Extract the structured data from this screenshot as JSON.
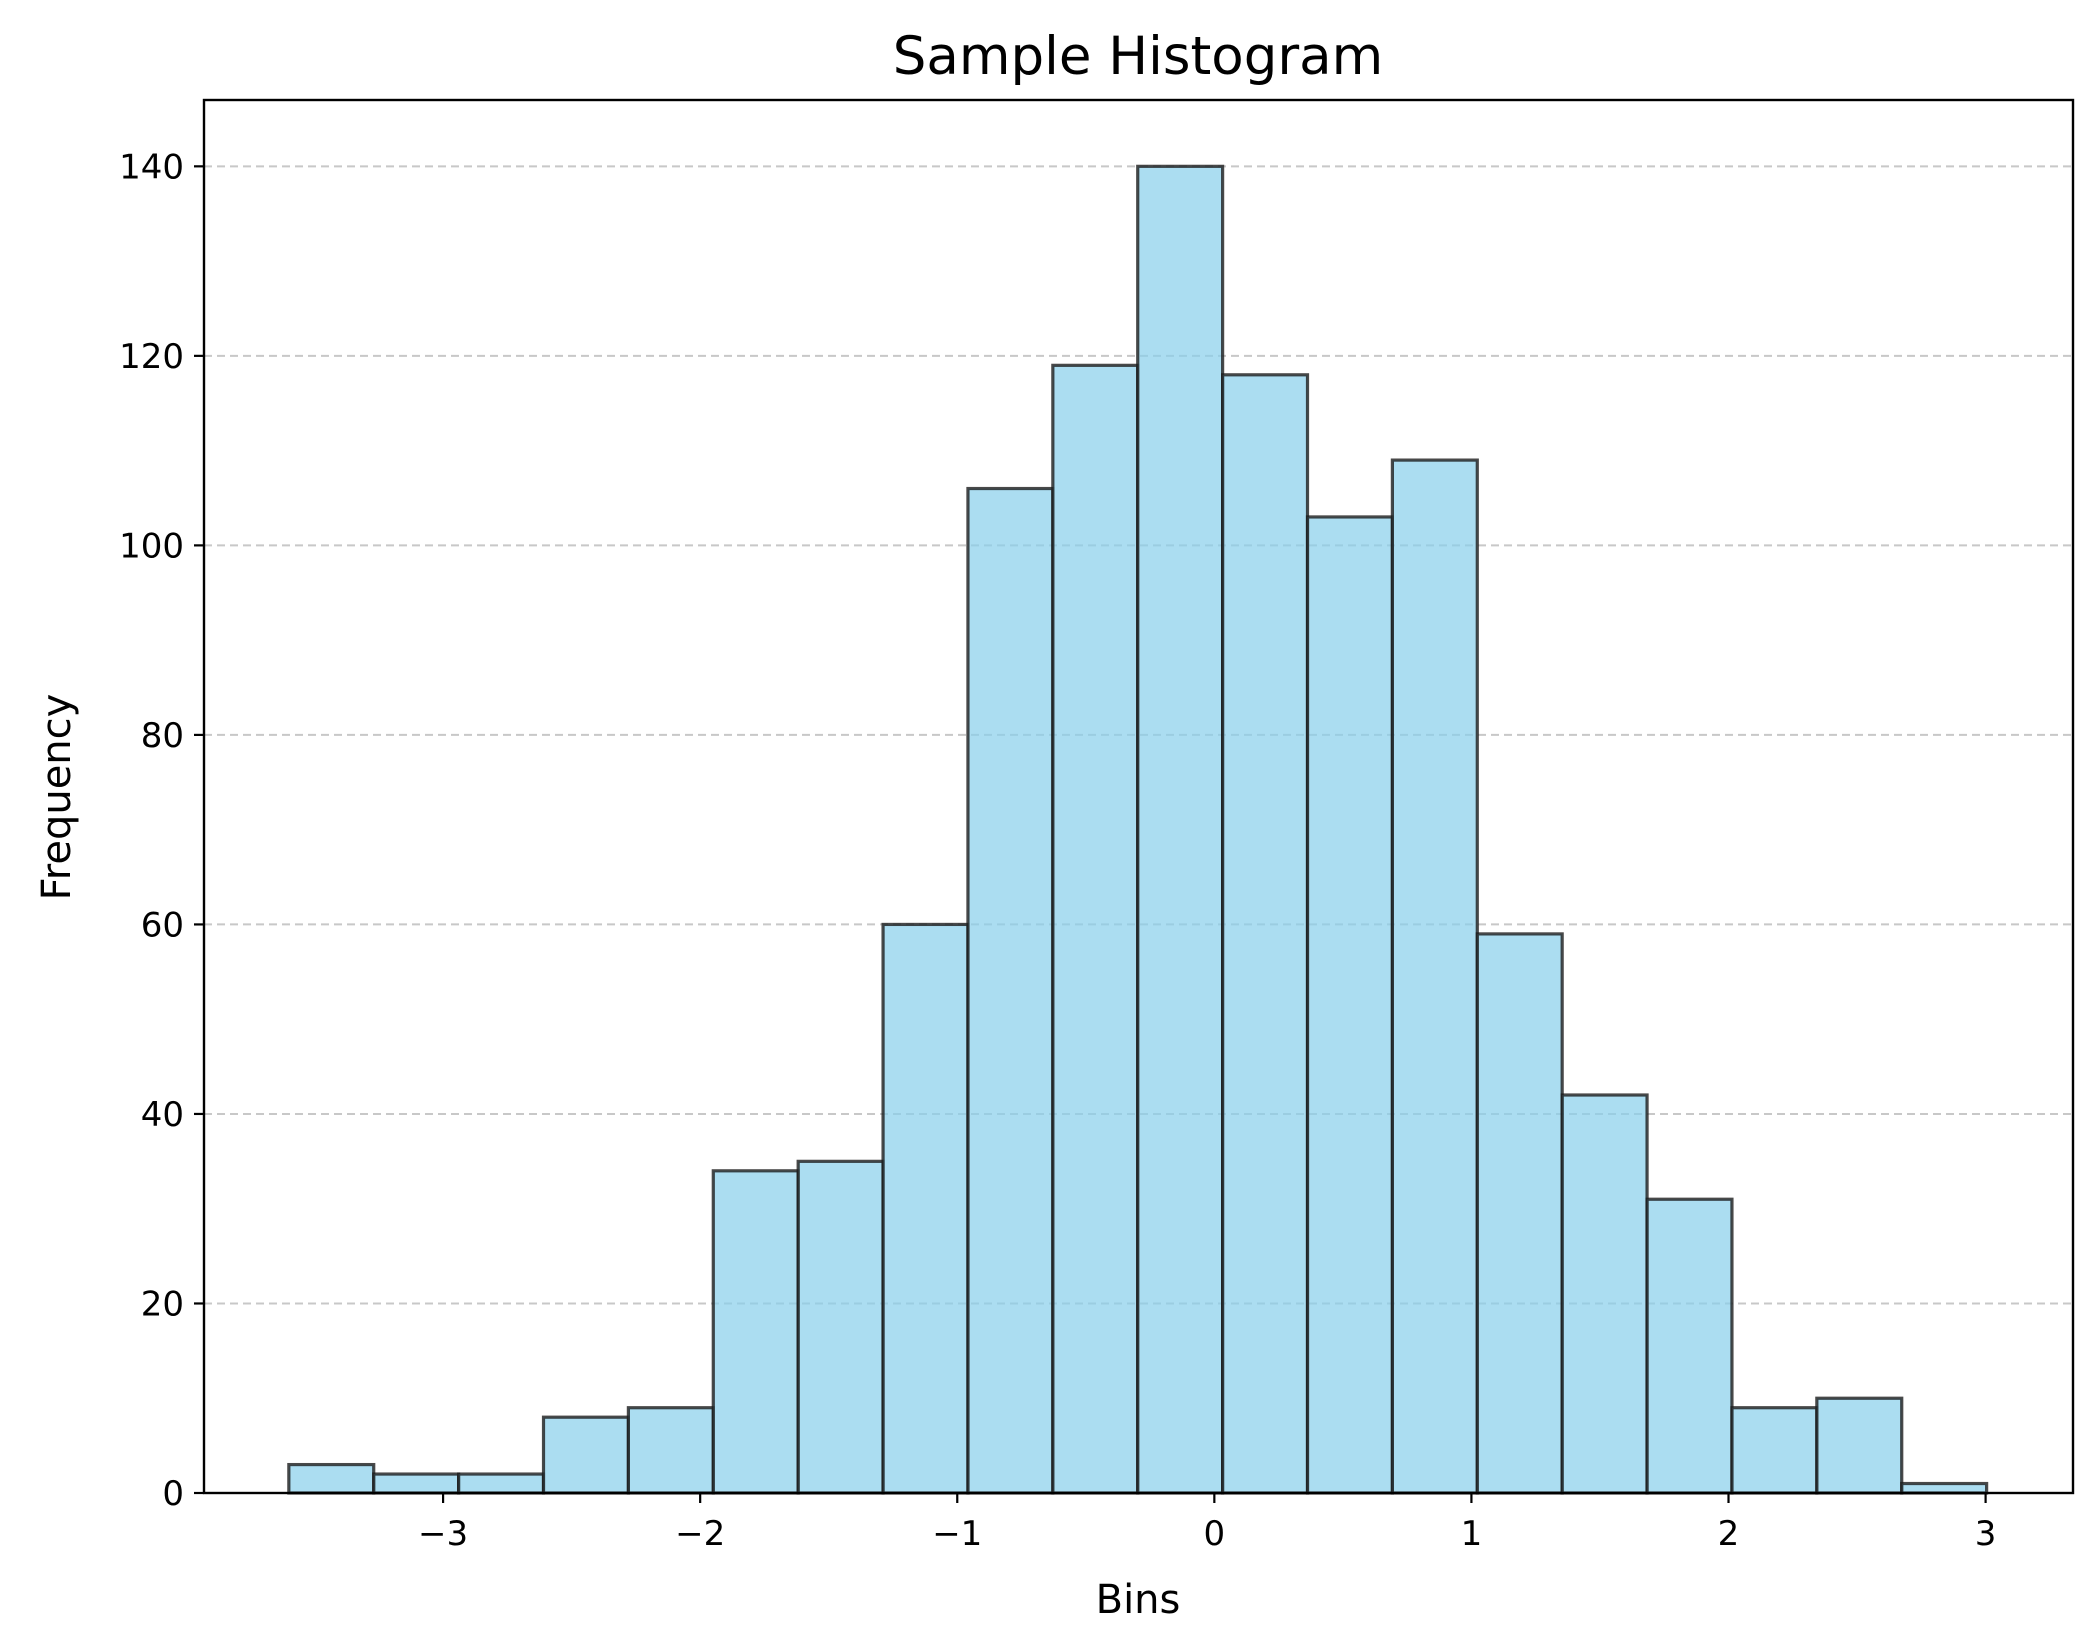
{
  "chart_data": {
    "type": "bar",
    "subtype": "histogram",
    "title": "Sample Histogram",
    "xlabel": "Bins",
    "ylabel": "Frequency",
    "bin_edges": [
      -3.6,
      -3.2698,
      -2.9396,
      -2.6094,
      -2.2792,
      -1.949,
      -1.6188,
      -1.2886,
      -0.9584,
      -0.6282,
      -0.298,
      0.0322,
      0.3624,
      0.6926,
      1.0228,
      1.353,
      1.6832,
      2.0134,
      2.3436,
      2.6738,
      3.004
    ],
    "values": [
      3,
      2,
      2,
      8,
      9,
      34,
      35,
      60,
      106,
      119,
      140,
      118,
      103,
      109,
      59,
      42,
      31,
      9,
      10,
      1
    ],
    "xlim": [
      -3.93,
      3.34
    ],
    "ylim": [
      0,
      147
    ],
    "x_ticks": [
      -3,
      -2,
      -1,
      0,
      1,
      2,
      3
    ],
    "x_tick_labels": [
      "−3",
      "−2",
      "−1",
      "0",
      "1",
      "2",
      "3"
    ],
    "y_ticks": [
      0,
      20,
      40,
      60,
      80,
      100,
      120,
      140
    ],
    "y_tick_labels": [
      "0",
      "20",
      "40",
      "60",
      "80",
      "100",
      "120",
      "140"
    ],
    "grid": "y-axis dashed",
    "colors": {
      "bar_fill": "#87ceeb",
      "bar_fill_opacity": 0.7,
      "bar_edge": "#000000",
      "grid": "#c8c8c8"
    }
  }
}
